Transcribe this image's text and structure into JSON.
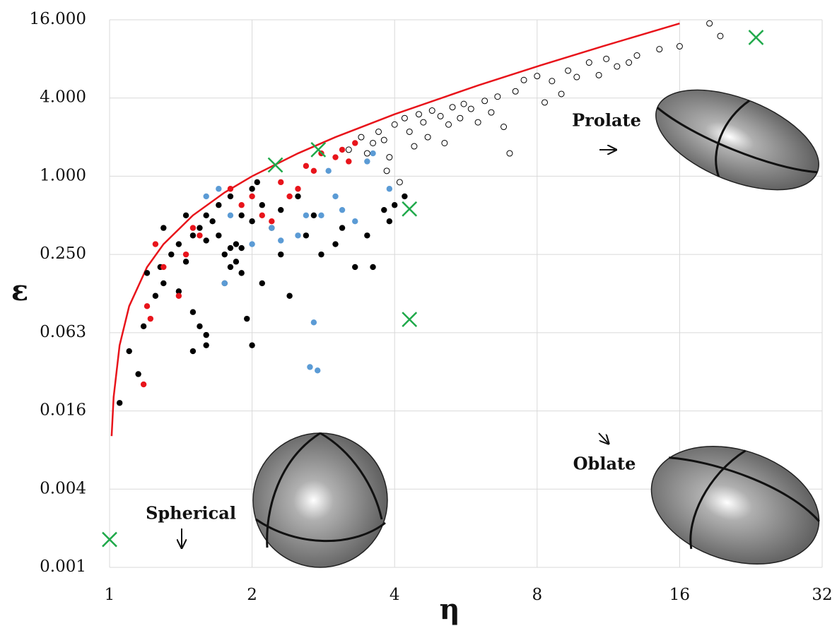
{
  "chart_data": {
    "type": "scatter",
    "x_label": "η",
    "y_label": "ε",
    "log_x": 2,
    "log_y": 4,
    "grid": true,
    "xlim": [
      1,
      32
    ],
    "ylim": [
      0.0009765625,
      16
    ],
    "xticks": [
      1,
      2,
      4,
      8,
      16,
      32
    ],
    "yticks": [
      {
        "value": 0.0009765625,
        "label": "0.001"
      },
      {
        "value": 0.00390625,
        "label": "0.004"
      },
      {
        "value": 0.015625,
        "label": "0.016"
      },
      {
        "value": 0.0625,
        "label": "0.063"
      },
      {
        "value": 0.25,
        "label": "0.250"
      },
      {
        "value": 1,
        "label": "1.000"
      },
      {
        "value": 4,
        "label": "4.000"
      },
      {
        "value": 16,
        "label": "16.000"
      }
    ],
    "annotations": [
      "Spherical",
      "Prolate",
      "Oblate"
    ],
    "series": [
      {
        "marker": "filled",
        "color": "#000000",
        "x": [
          1.05,
          1.1,
          1.15,
          1.18,
          1.25,
          1.3,
          1.28,
          1.35,
          1.4,
          1.45,
          1.5,
          1.55,
          1.6,
          1.5,
          1.55,
          1.6,
          1.5,
          1.6,
          1.7,
          1.75,
          1.8,
          1.85,
          1.8,
          1.85,
          1.9,
          1.75,
          1.7,
          1.8,
          1.9,
          2.0,
          2.0,
          2.05,
          2.1,
          2.2,
          2.1,
          1.95,
          2.0,
          2.3,
          2.4,
          2.6,
          2.7,
          2.8,
          3.0,
          3.1,
          3.3,
          3.5,
          3.6,
          3.8,
          3.9,
          4.0,
          4.2,
          1.6,
          1.65,
          1.45,
          1.3,
          1.2,
          1.4,
          2.5,
          2.3,
          1.9
        ],
        "values": [
          0.018,
          0.045,
          0.03,
          0.07,
          0.12,
          0.15,
          0.2,
          0.25,
          0.3,
          0.22,
          0.35,
          0.4,
          0.5,
          0.09,
          0.07,
          0.06,
          0.045,
          0.05,
          0.35,
          0.25,
          0.2,
          0.3,
          0.28,
          0.22,
          0.18,
          0.15,
          0.6,
          0.7,
          0.5,
          0.45,
          0.8,
          0.9,
          0.6,
          0.4,
          0.15,
          0.08,
          0.05,
          0.25,
          0.12,
          0.35,
          0.5,
          0.25,
          0.3,
          0.4,
          0.2,
          0.35,
          0.2,
          0.55,
          0.45,
          0.6,
          0.7,
          0.32,
          0.45,
          0.5,
          0.4,
          0.18,
          0.13,
          0.7,
          0.55,
          0.28
        ]
      },
      {
        "marker": "filled",
        "color": "#e8141b",
        "x": [
          1.25,
          1.2,
          1.22,
          1.3,
          1.4,
          1.45,
          1.5,
          1.55,
          1.8,
          1.9,
          2.0,
          2.1,
          2.2,
          2.3,
          2.4,
          2.5,
          2.6,
          2.7,
          2.8,
          3.0,
          3.1,
          3.2,
          3.3,
          1.18
        ],
        "values": [
          0.3,
          0.1,
          0.08,
          0.2,
          0.12,
          0.25,
          0.4,
          0.35,
          0.8,
          0.6,
          0.7,
          0.5,
          0.45,
          0.9,
          0.7,
          0.8,
          1.2,
          1.1,
          1.5,
          1.4,
          1.6,
          1.3,
          1.8,
          0.025
        ]
      },
      {
        "marker": "filled",
        "color": "#5b9bd5",
        "x": [
          1.6,
          1.7,
          1.75,
          1.8,
          2.0,
          2.2,
          2.3,
          2.5,
          2.6,
          2.8,
          2.7,
          2.65,
          2.75,
          2.9,
          3.0,
          3.1,
          3.3,
          3.5,
          3.6,
          3.9
        ],
        "values": [
          0.7,
          0.8,
          0.15,
          0.5,
          0.3,
          0.4,
          0.32,
          0.35,
          0.5,
          0.5,
          0.075,
          0.034,
          0.032,
          1.1,
          0.7,
          0.55,
          0.45,
          1.3,
          1.5,
          0.8
        ]
      },
      {
        "marker": "open",
        "color": "#000000",
        "x": [
          3.2,
          3.4,
          3.5,
          3.6,
          3.7,
          3.8,
          3.9,
          4.0,
          4.2,
          4.3,
          4.4,
          4.5,
          4.6,
          4.8,
          5.0,
          5.2,
          5.3,
          5.5,
          5.6,
          5.8,
          6.0,
          6.2,
          6.4,
          6.6,
          6.8,
          7.0,
          7.2,
          7.5,
          8.0,
          8.3,
          8.6,
          9.0,
          9.3,
          9.7,
          10.3,
          10.8,
          11.2,
          11.8,
          12.5,
          13,
          14.5,
          16,
          18.5,
          19.5,
          3.85,
          4.1,
          4.7,
          5.1
        ],
        "values": [
          1.6,
          2,
          1.5,
          1.8,
          2.2,
          1.9,
          1.4,
          2.5,
          2.8,
          2.2,
          1.7,
          3,
          2.6,
          3.2,
          2.9,
          2.5,
          3.4,
          2.8,
          3.6,
          3.3,
          2.6,
          3.8,
          3.1,
          4.1,
          2.4,
          1.5,
          4.5,
          5.5,
          5.9,
          3.7,
          5.4,
          4.3,
          6.5,
          5.8,
          7.5,
          6,
          8,
          7,
          7.5,
          8.5,
          9.5,
          10,
          15,
          12,
          1.1,
          0.9,
          2,
          1.8
        ]
      },
      {
        "marker": "x",
        "color": "#1fa94a",
        "x": [
          1,
          2.24,
          2.76,
          4.3,
          4.3,
          23.2
        ],
        "values": [
          0.0016,
          1.22,
          1.6,
          0.56,
          0.079,
          11.7
        ]
      },
      {
        "marker": "line",
        "color": "#e8141b",
        "x": [
          1.01,
          1.02,
          1.05,
          1.1,
          1.2,
          1.3,
          1.5,
          1.75,
          2,
          2.5,
          3,
          4,
          6,
          8,
          11,
          16
        ],
        "values": [
          0.01,
          0.02,
          0.05,
          0.1,
          0.2,
          0.3,
          0.5,
          0.75,
          1,
          1.5,
          2,
          3,
          5,
          7,
          10,
          15
        ]
      }
    ]
  }
}
